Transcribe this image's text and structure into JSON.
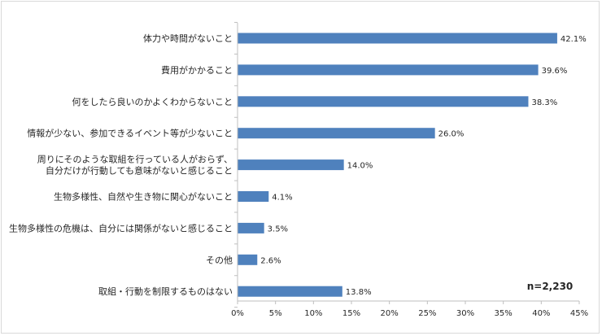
{
  "chart_data": {
    "type": "bar",
    "orientation": "horizontal",
    "categories": [
      [
        "体力や時間がないこと"
      ],
      [
        "費用がかかること"
      ],
      [
        "何をしたら良いのかよくわからないこと"
      ],
      [
        "情報が少ない、参加できるイベント等が少ないこと"
      ],
      [
        "周りにそのような取組を行っている人がおらず、",
        "自分だけが行動しても意味がないと感じること"
      ],
      [
        "生物多様性、自然や生き物に関心がないこと"
      ],
      [
        "生物多様性の危機は、自分には関係がないと感じること"
      ],
      [
        "その他"
      ],
      [
        "取組・行動を制限するものはない"
      ]
    ],
    "values": [
      42.1,
      39.6,
      38.3,
      26.0,
      14.0,
      4.1,
      3.5,
      2.6,
      13.8
    ],
    "value_labels": [
      "42.1%",
      "39.6%",
      "38.3%",
      "26.0%",
      "14.0%",
      "4.1%",
      "3.5%",
      "2.6%",
      "13.8%"
    ],
    "xlim": [
      0,
      45
    ],
    "xticks": [
      0,
      5,
      10,
      15,
      20,
      25,
      30,
      35,
      40,
      45
    ],
    "xtick_labels": [
      "0%",
      "5%",
      "10%",
      "15%",
      "20%",
      "25%",
      "30%",
      "35%",
      "40%",
      "45%"
    ],
    "grid": false,
    "annotation": "n=2,230",
    "bar_color": "#4f81bd",
    "text_color": "#262626",
    "axis_color": "#bfbfbf"
  }
}
